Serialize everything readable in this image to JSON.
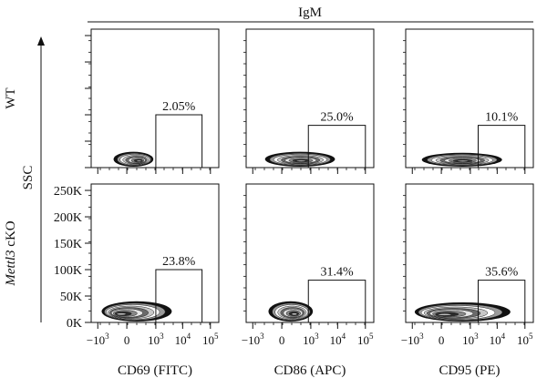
{
  "chart_data": {
    "type": "contour",
    "title": "IgM",
    "y_axis_label": "SSC",
    "row_labels": [
      {
        "text": "WT",
        "italic_part": ""
      },
      {
        "text": "cKO",
        "italic_part": "Mettl3"
      }
    ],
    "y_ticks": [
      {
        "label": "0K",
        "value": 0
      },
      {
        "label": "50K",
        "value": 50000
      },
      {
        "label": "100K",
        "value": 100000
      },
      {
        "label": "150K",
        "value": 150000
      },
      {
        "label": "200K",
        "value": 200000
      },
      {
        "label": "250K",
        "value": 250000
      }
    ],
    "ylim": [
      0,
      262144
    ],
    "x_scale": "biexponential",
    "x_ticks": [
      {
        "base": "−10",
        "exp": "3",
        "value": -1000
      },
      {
        "base": "0",
        "exp": "",
        "value": 0
      },
      {
        "base": "10",
        "exp": "3",
        "value": 1000
      },
      {
        "base": "10",
        "exp": "4",
        "value": 10000
      },
      {
        "base": "10",
        "exp": "5",
        "value": 100000
      }
    ],
    "columns": [
      {
        "xlabel": "CD69 (FITC)"
      },
      {
        "xlabel": "CD86 (APC)"
      },
      {
        "xlabel": "CD95 (PE)"
      }
    ],
    "panels": [
      {
        "row": 0,
        "col": 0,
        "gate_label": "2.05%",
        "gate": {
          "x_min": 1000,
          "x_max": 50000,
          "y_min": 0,
          "y_max": 100000
        }
      },
      {
        "row": 0,
        "col": 1,
        "gate_label": "25.0%",
        "gate": {
          "x_min": 800,
          "x_max": 100000,
          "y_min": 0,
          "y_max": 80000
        }
      },
      {
        "row": 0,
        "col": 2,
        "gate_label": "10.1%",
        "gate": {
          "x_min": 2000,
          "x_max": 100000,
          "y_min": 0,
          "y_max": 80000
        }
      },
      {
        "row": 1,
        "col": 0,
        "gate_label": "23.8%",
        "gate": {
          "x_min": 1000,
          "x_max": 50000,
          "y_min": 0,
          "y_max": 100000
        }
      },
      {
        "row": 1,
        "col": 1,
        "gate_label": "31.4%",
        "gate": {
          "x_min": 800,
          "x_max": 100000,
          "y_min": 0,
          "y_max": 80000
        }
      },
      {
        "row": 1,
        "col": 2,
        "gate_label": "35.6%",
        "gate": {
          "x_min": 2000,
          "x_max": 100000,
          "y_min": 0,
          "y_max": 80000
        }
      }
    ],
    "populations": [
      {
        "row": 0,
        "col": 0,
        "x_min": -200,
        "x_max": 800,
        "y_min": 0,
        "y_max": 30000,
        "peak_x": 200,
        "peak_y": 12000
      },
      {
        "row": 0,
        "col": 1,
        "x_min": -300,
        "x_max": 8000,
        "y_min": 0,
        "y_max": 30000,
        "peak_x": 400,
        "peak_y": 12000
      },
      {
        "row": 0,
        "col": 2,
        "x_min": -400,
        "x_max": 15000,
        "y_min": 0,
        "y_max": 28000,
        "peak_x": 500,
        "peak_y": 12000
      },
      {
        "row": 1,
        "col": 0,
        "x_min": -700,
        "x_max": 4000,
        "y_min": 0,
        "y_max": 40000,
        "peak_x": -100,
        "peak_y": 15000
      },
      {
        "row": 1,
        "col": 1,
        "x_min": -200,
        "x_max": 1200,
        "y_min": 0,
        "y_max": 40000,
        "peak_x": 200,
        "peak_y": 15000
      },
      {
        "row": 1,
        "col": 2,
        "x_min": -800,
        "x_max": 30000,
        "y_min": 0,
        "y_max": 38000,
        "peak_x": 0,
        "peak_y": 14000
      }
    ]
  }
}
